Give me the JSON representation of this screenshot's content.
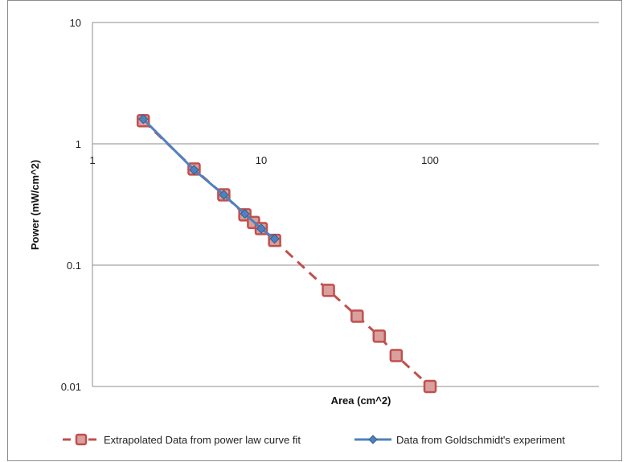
{
  "chart_data": {
    "type": "line",
    "xlabel": "Area (cm^2)",
    "ylabel": "Power (mW/cm^2)",
    "xscale": "log",
    "yscale": "log",
    "xlim": [
      1,
      1000
    ],
    "ylim": [
      0.01,
      10
    ],
    "x_ticks": [
      "1",
      "10",
      "100"
    ],
    "y_ticks": [
      "10",
      "1",
      "0.1",
      "0.01"
    ],
    "grid": "horizontal",
    "legend_position": "bottom",
    "series": [
      {
        "name": "Extrapolated Data from power law curve fit",
        "color": "#c0504d",
        "line_style": "dashed",
        "marker": "square",
        "x": [
          2,
          4,
          6,
          8,
          9,
          10,
          12,
          25,
          37,
          50,
          63,
          100
        ],
        "y": [
          1.55,
          0.62,
          0.38,
          0.26,
          0.225,
          0.2,
          0.16,
          0.062,
          0.038,
          0.026,
          0.018,
          0.01
        ]
      },
      {
        "name": "Data from Goldschmidt's experiment",
        "color": "#4f81bd",
        "line_style": "solid",
        "marker": "diamond",
        "x": [
          2,
          4,
          6,
          8,
          10,
          12
        ],
        "y": [
          1.6,
          0.61,
          0.38,
          0.265,
          0.2,
          0.165
        ]
      }
    ]
  }
}
